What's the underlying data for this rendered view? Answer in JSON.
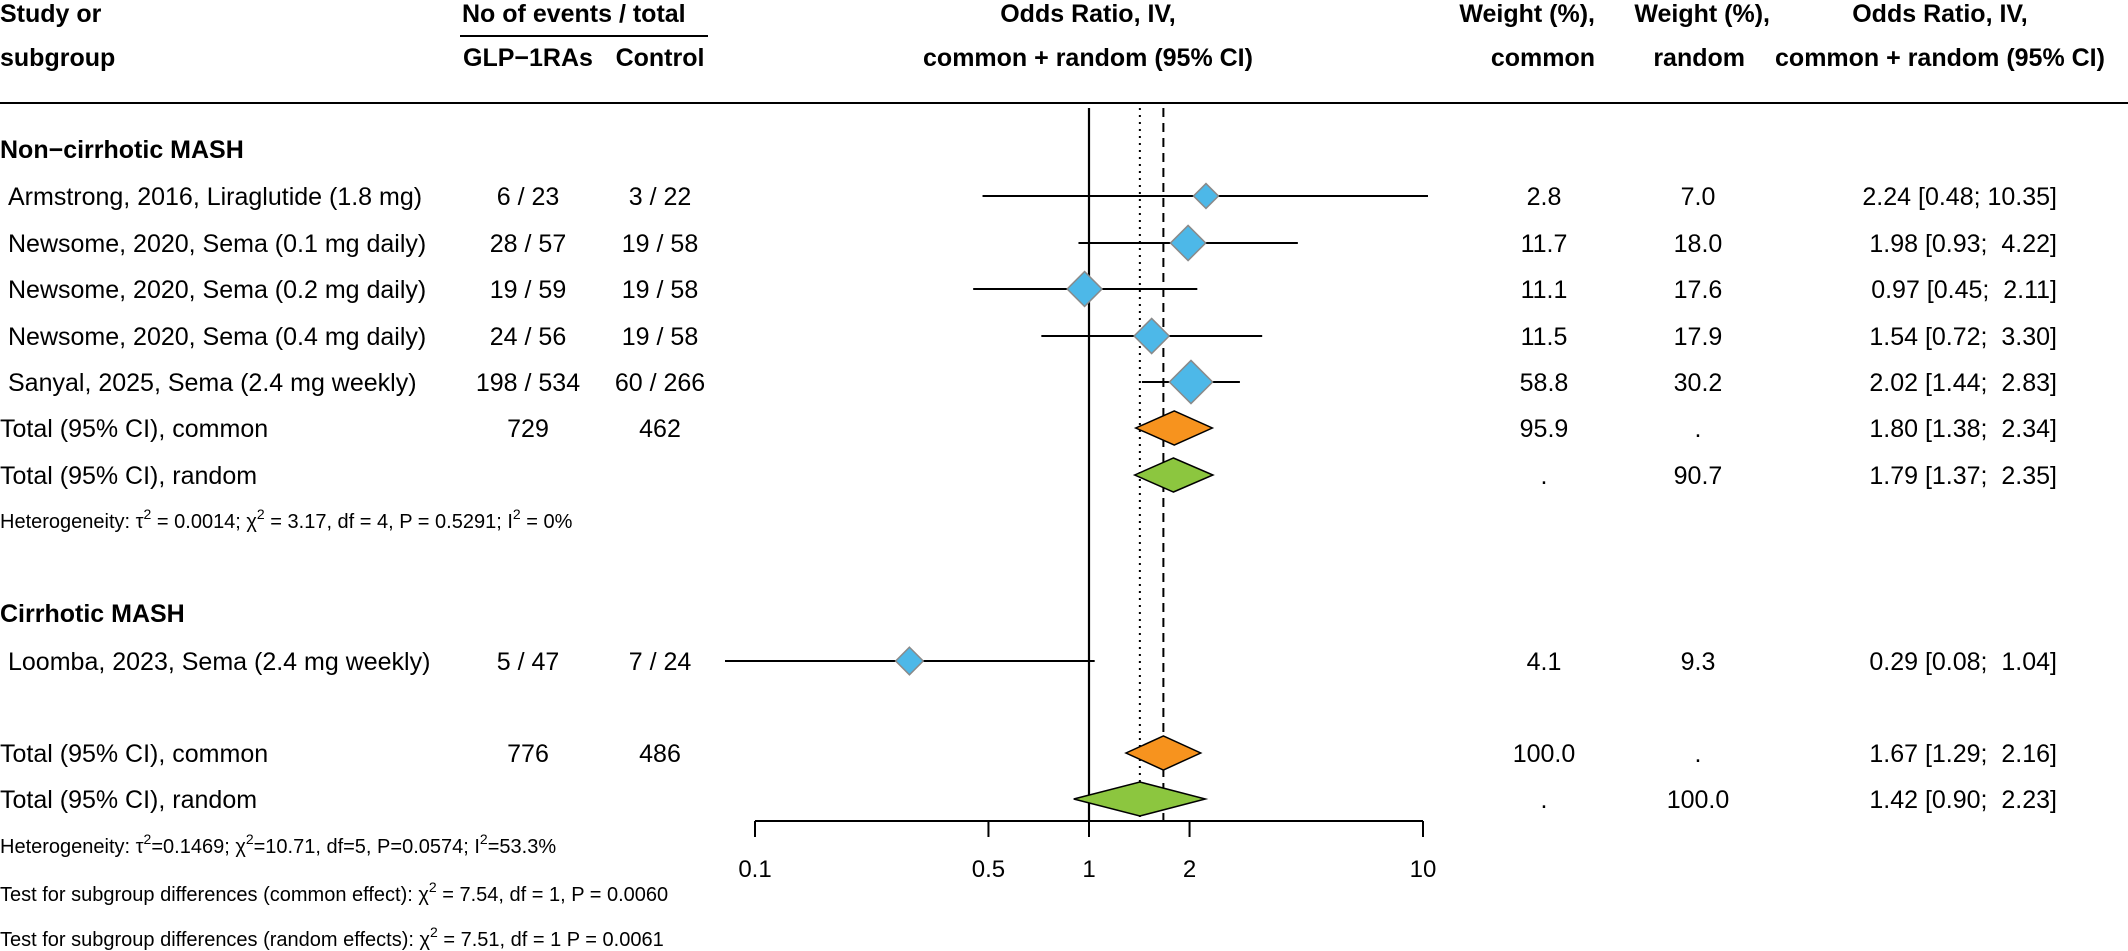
{
  "headers": {
    "study_line1": "Study or",
    "study_line2": "subgroup",
    "events_top": "No of events / total",
    "events_exp": "GLP−1RAs",
    "events_ctl": "Control",
    "or_line1": "Odds Ratio, IV,",
    "or_line2": "common + random (95% CI)",
    "wc_line1": "Weight (%),",
    "wc_line2": "common",
    "wr_line1": "Weight (%),",
    "wr_line2": "random",
    "ort_line1": "Odds Ratio, IV,",
    "ort_line2": "common + random (95% CI)"
  },
  "groups": {
    "g1": "Non−cirrhotic MASH",
    "g2": "Cirrhotic MASH"
  },
  "heterogeneity_1": {
    "prefix": "Heterogeneity: ",
    "tau": "τ",
    "tau_sup": "2",
    "tau_val": " = 0.0014; ",
    "chi": "χ",
    "chi_sup": "2",
    "chi_val": " = 3.17, df = 4, P = 0.5291; ",
    "i": "I",
    "i_sup": "2",
    "i_val": " = 0%"
  },
  "heterogeneity_all": {
    "prefix": "Heterogeneity: ",
    "tau": "τ",
    "tau_sup": "2",
    "tau_val": "=0.1469; ",
    "chi": "χ",
    "chi_sup": "2",
    "chi_val": "=10.71, df=5, P=0.0574; ",
    "i": "I",
    "i_sup": "2",
    "i_val": "=53.3%"
  },
  "test_common": {
    "prefix": "Test for subgroup differences (common effect): ",
    "chi": "χ",
    "chi_sup": "2",
    "chi_val": " = 7.54, df = 1, P = 0.0060"
  },
  "test_random": {
    "prefix": "Test for subgroup differences (random effects): ",
    "chi": "χ",
    "chi_sup": "2",
    "chi_val": " = 7.51, df = 1 P = 0.0061"
  },
  "colors": {
    "study_marker": "#4db8e8",
    "common_diamond": "#f7931e",
    "random_diamond": "#8cc63f",
    "line": "#000000"
  },
  "chart_data": {
    "type": "forest",
    "x_scale": "log",
    "x_ticks": [
      "0.1",
      "0.5",
      "1",
      "2",
      "10"
    ],
    "x_range": [
      0.1,
      10
    ],
    "reference_line": 1,
    "common_effect_line": 1.67,
    "random_effect_line": 1.42,
    "rows": [
      {
        "kind": "study",
        "label": "Armstrong, 2016, Liraglutide (1.8 mg)",
        "exp": "6 / 23",
        "ctl": "3 / 22",
        "or": 2.24,
        "lo": 0.48,
        "hi": 10.35,
        "wc": "2.8",
        "wr": "7.0",
        "text": "2.24 [0.48; 10.35]"
      },
      {
        "kind": "study",
        "label": "Newsome, 2020, Sema (0.1 mg daily)",
        "exp": "28 / 57",
        "ctl": "19 / 58",
        "or": 1.98,
        "lo": 0.93,
        "hi": 4.22,
        "wc": "11.7",
        "wr": "18.0",
        "text": "1.98 [0.93;  4.22]"
      },
      {
        "kind": "study",
        "label": "Newsome, 2020, Sema (0.2 mg daily)",
        "exp": "19 / 59",
        "ctl": "19 / 58",
        "or": 0.97,
        "lo": 0.45,
        "hi": 2.11,
        "wc": "11.1",
        "wr": "17.6",
        "text": "0.97 [0.45;  2.11]"
      },
      {
        "kind": "study",
        "label": "Newsome, 2020, Sema (0.4 mg daily)",
        "exp": "24 / 56",
        "ctl": "19 / 58",
        "or": 1.54,
        "lo": 0.72,
        "hi": 3.3,
        "wc": "11.5",
        "wr": "17.9",
        "text": "1.54 [0.72;  3.30]"
      },
      {
        "kind": "study",
        "label": "Sanyal, 2025, Sema (2.4 mg weekly)",
        "exp": "198 / 534",
        "ctl": "60 / 266",
        "or": 2.02,
        "lo": 1.44,
        "hi": 2.83,
        "wc": "58.8",
        "wr": "30.2",
        "text": "2.02 [1.44;  2.83]"
      },
      {
        "kind": "common",
        "label": "Total (95% CI), common",
        "exp": "729",
        "ctl": "462",
        "or": 1.8,
        "lo": 1.38,
        "hi": 2.34,
        "wc": "95.9",
        "wr": ".",
        "text": "1.80 [1.38;  2.34]"
      },
      {
        "kind": "random",
        "label": "Total (95% CI), random",
        "exp": "",
        "ctl": "",
        "or": 1.79,
        "lo": 1.37,
        "hi": 2.35,
        "wc": ".",
        "wr": "90.7",
        "text": "1.79 [1.37;  2.35]"
      },
      {
        "kind": "study",
        "label": "Loomba, 2023, Sema (2.4 mg weekly)",
        "exp": "5 / 47",
        "ctl": "7 / 24",
        "or": 0.29,
        "lo": 0.08,
        "hi": 1.04,
        "wc": "4.1",
        "wr": "9.3",
        "text": "0.29 [0.08;  1.04]"
      },
      {
        "kind": "common",
        "label": "Total (95% CI), common",
        "exp": "776",
        "ctl": "486",
        "or": 1.67,
        "lo": 1.29,
        "hi": 2.16,
        "wc": "100.0",
        "wr": ".",
        "text": "1.67 [1.29;  2.16]"
      },
      {
        "kind": "random",
        "label": "Total (95% CI), random",
        "exp": "",
        "ctl": "",
        "or": 1.42,
        "lo": 0.9,
        "hi": 2.23,
        "wc": ".",
        "wr": "100.0",
        "text": "1.42 [0.90;  2.23]"
      }
    ]
  }
}
